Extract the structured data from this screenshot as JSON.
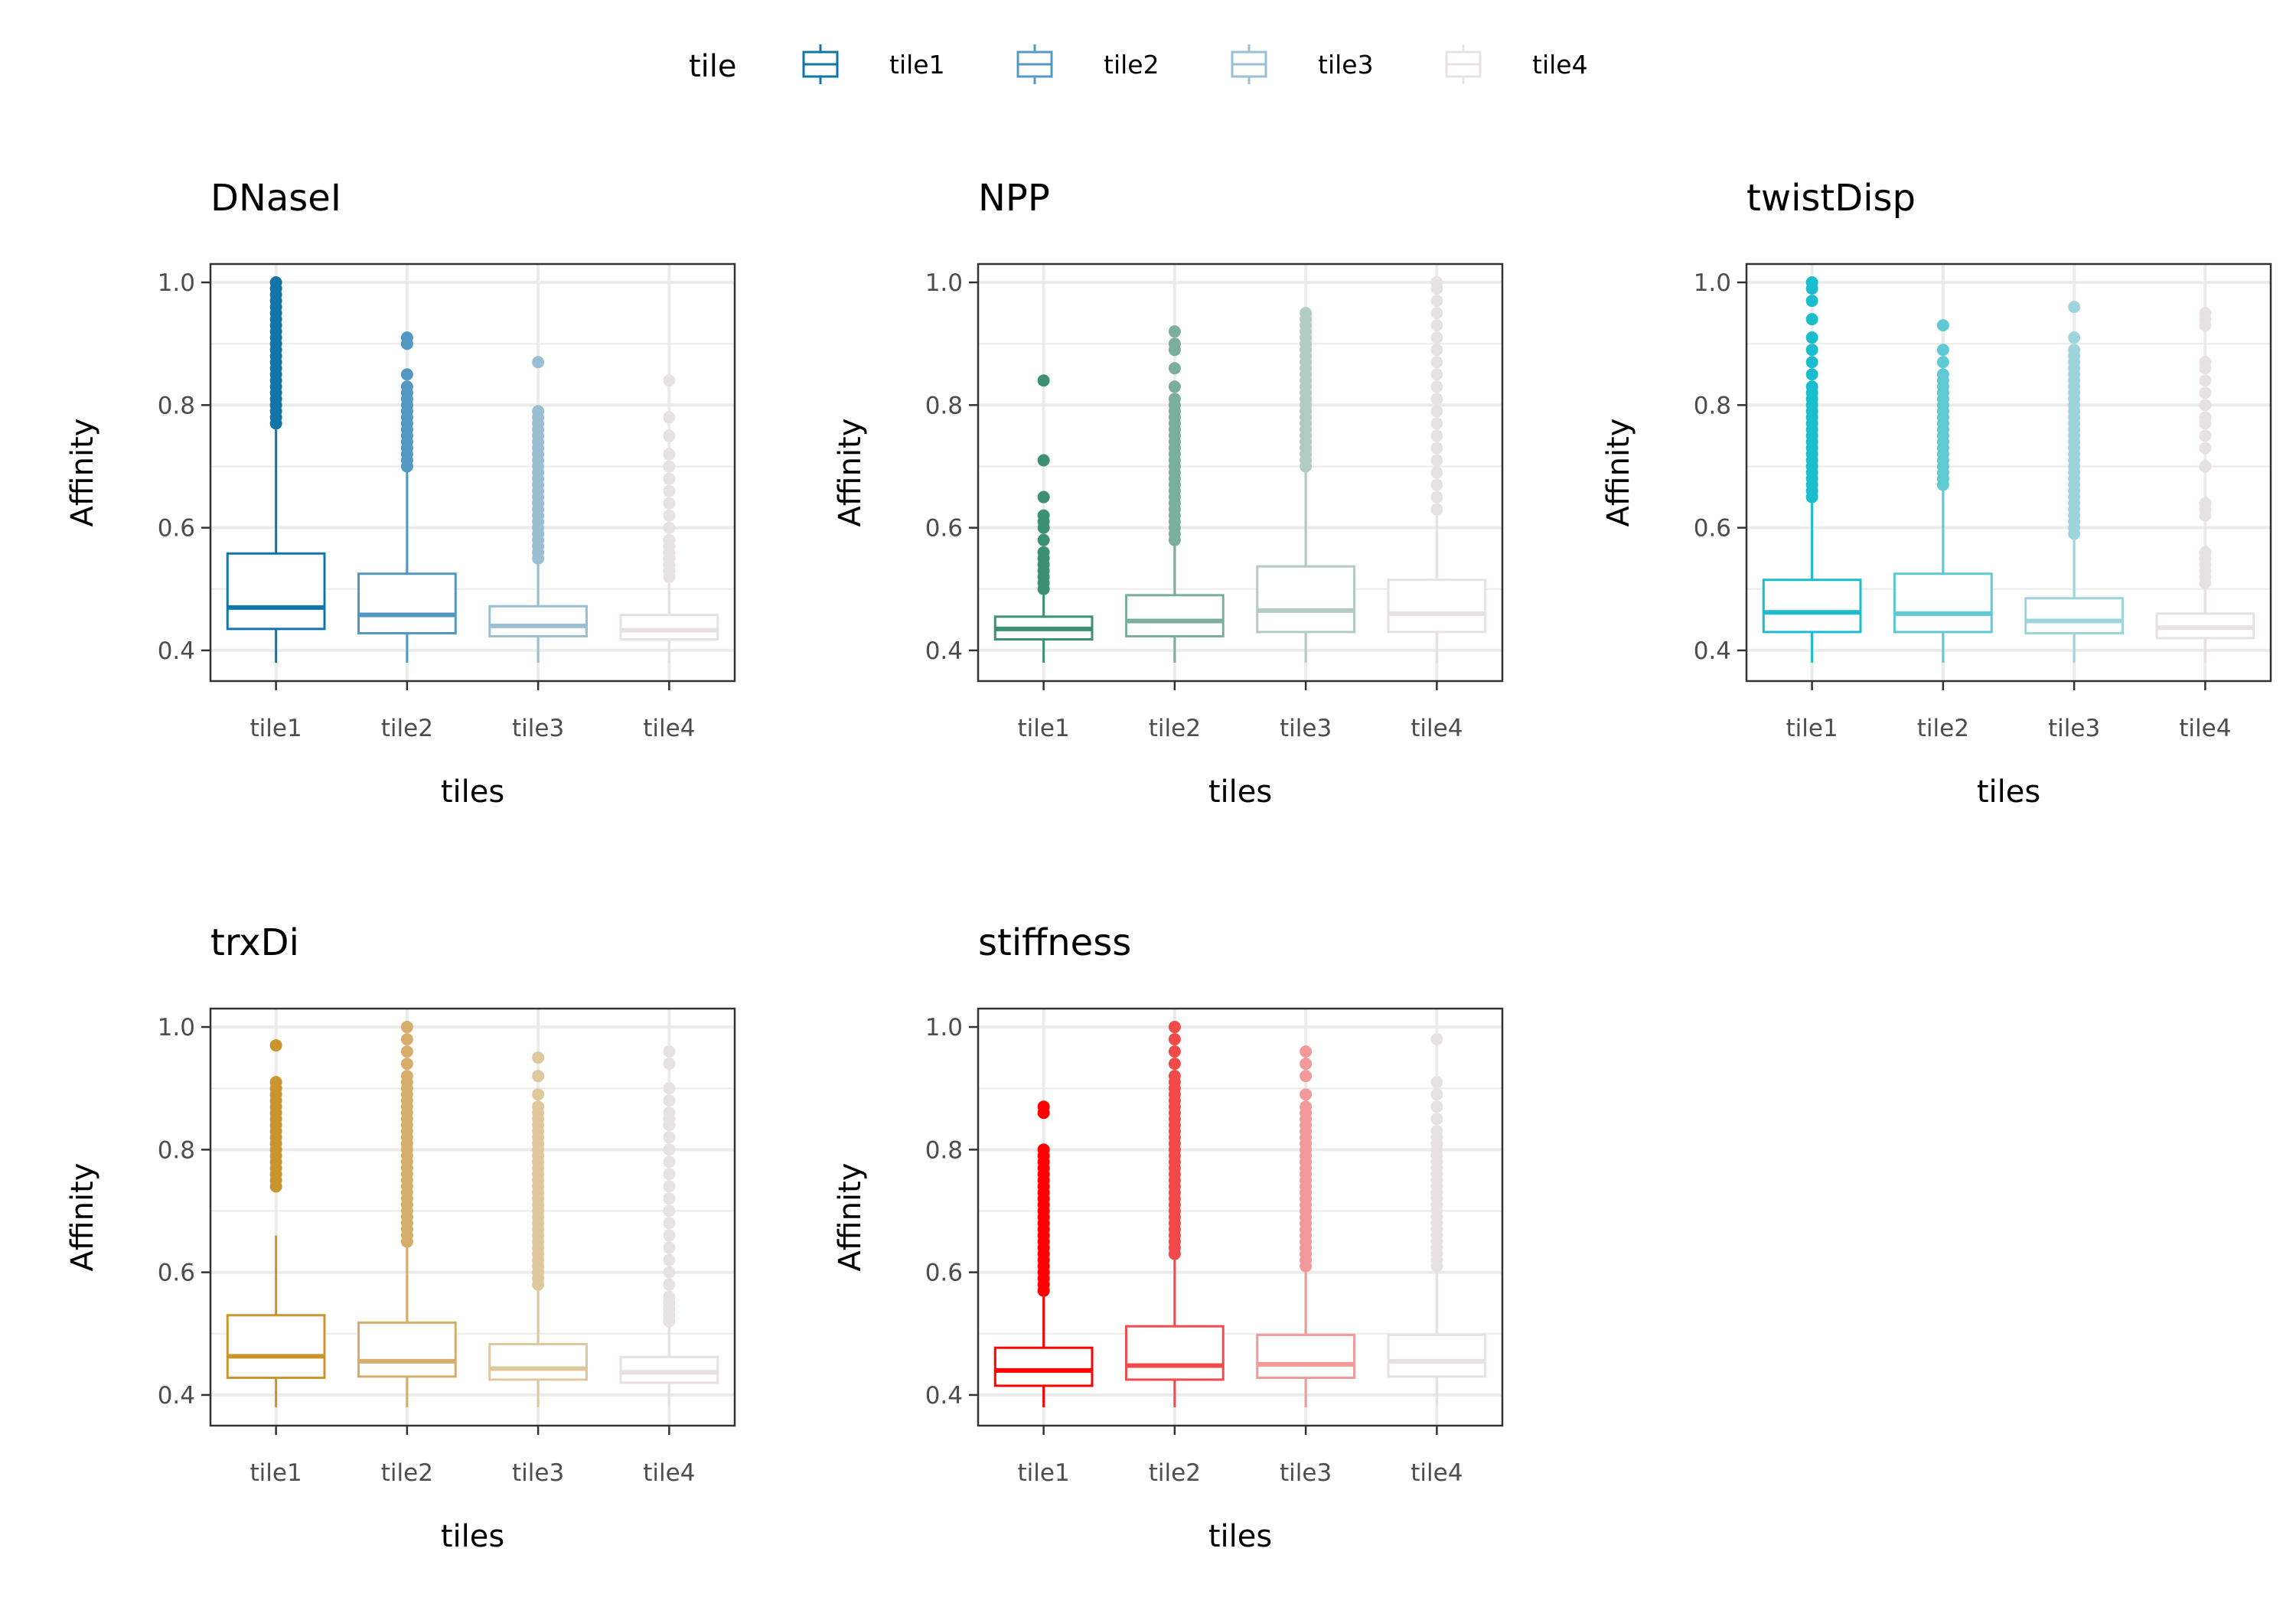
{
  "legend": {
    "title": "tile",
    "items": [
      "tile1",
      "tile2",
      "tile3",
      "tile4"
    ]
  },
  "chart_data": [
    {
      "type": "box",
      "title": "DNaseI",
      "xlabel": "tiles",
      "ylabel": "Affinity",
      "categories": [
        "tile1",
        "tile2",
        "tile3",
        "tile4"
      ],
      "yticks": [
        "0.4",
        "0.6",
        "0.8",
        "1.0"
      ],
      "ylim": [
        0.35,
        1.03
      ],
      "colors": [
        "#1175a8",
        "#5398c2",
        "#98bfd2",
        "#e8e1e3"
      ],
      "boxes": [
        {
          "q1": 0.435,
          "median": 0.47,
          "q3": 0.558,
          "lower_whisker": 0.38,
          "upper_whisker": 0.76,
          "outliers": [
            0.77,
            0.78,
            0.79,
            0.8,
            0.81,
            0.82,
            0.83,
            0.84,
            0.85,
            0.86,
            0.87,
            0.88,
            0.89,
            0.9,
            0.91,
            0.92,
            0.93,
            0.94,
            0.95,
            0.96,
            0.97,
            0.98,
            0.99,
            1.0
          ]
        },
        {
          "q1": 0.428,
          "median": 0.458,
          "q3": 0.525,
          "lower_whisker": 0.38,
          "upper_whisker": 0.69,
          "outliers": [
            0.7,
            0.71,
            0.72,
            0.73,
            0.74,
            0.75,
            0.76,
            0.77,
            0.78,
            0.79,
            0.8,
            0.81,
            0.82,
            0.83,
            0.85,
            0.9,
            0.91
          ]
        },
        {
          "q1": 0.423,
          "median": 0.44,
          "q3": 0.472,
          "lower_whisker": 0.38,
          "upper_whisker": 0.54,
          "outliers": [
            0.55,
            0.56,
            0.57,
            0.58,
            0.59,
            0.6,
            0.61,
            0.62,
            0.63,
            0.64,
            0.65,
            0.66,
            0.67,
            0.68,
            0.69,
            0.7,
            0.71,
            0.72,
            0.73,
            0.74,
            0.75,
            0.76,
            0.77,
            0.78,
            0.79,
            0.87
          ]
        },
        {
          "q1": 0.418,
          "median": 0.433,
          "q3": 0.458,
          "lower_whisker": 0.38,
          "upper_whisker": 0.51,
          "outliers": [
            0.52,
            0.53,
            0.54,
            0.55,
            0.56,
            0.57,
            0.58,
            0.6,
            0.62,
            0.64,
            0.66,
            0.68,
            0.7,
            0.72,
            0.75,
            0.78,
            0.84
          ]
        }
      ]
    },
    {
      "type": "box",
      "title": "NPP",
      "xlabel": "tiles",
      "ylabel": "Affinity",
      "categories": [
        "tile1",
        "tile2",
        "tile3",
        "tile4"
      ],
      "yticks": [
        "0.4",
        "0.6",
        "0.8",
        "1.0"
      ],
      "ylim": [
        0.35,
        1.03
      ],
      "colors": [
        "#3d9073",
        "#7cae9d",
        "#b2cbc3",
        "#e8e1e3"
      ],
      "boxes": [
        {
          "q1": 0.418,
          "median": 0.435,
          "q3": 0.455,
          "lower_whisker": 0.38,
          "upper_whisker": 0.49,
          "outliers": [
            0.5,
            0.51,
            0.52,
            0.53,
            0.54,
            0.55,
            0.56,
            0.58,
            0.6,
            0.61,
            0.62,
            0.65,
            0.71,
            0.84
          ]
        },
        {
          "q1": 0.423,
          "median": 0.448,
          "q3": 0.49,
          "lower_whisker": 0.38,
          "upper_whisker": 0.57,
          "outliers": [
            0.58,
            0.59,
            0.6,
            0.61,
            0.62,
            0.63,
            0.64,
            0.65,
            0.66,
            0.67,
            0.68,
            0.69,
            0.7,
            0.71,
            0.72,
            0.73,
            0.74,
            0.75,
            0.76,
            0.77,
            0.78,
            0.79,
            0.8,
            0.81,
            0.83,
            0.86,
            0.89,
            0.9,
            0.92
          ]
        },
        {
          "q1": 0.43,
          "median": 0.465,
          "q3": 0.537,
          "lower_whisker": 0.38,
          "upper_whisker": 0.69,
          "outliers": [
            0.7,
            0.71,
            0.72,
            0.73,
            0.74,
            0.75,
            0.76,
            0.77,
            0.78,
            0.79,
            0.8,
            0.81,
            0.82,
            0.83,
            0.84,
            0.85,
            0.86,
            0.87,
            0.88,
            0.89,
            0.9,
            0.91,
            0.92,
            0.93,
            0.94,
            0.95
          ]
        },
        {
          "q1": 0.43,
          "median": 0.46,
          "q3": 0.515,
          "lower_whisker": 0.38,
          "upper_whisker": 0.62,
          "outliers": [
            0.63,
            0.65,
            0.67,
            0.69,
            0.71,
            0.73,
            0.75,
            0.77,
            0.79,
            0.81,
            0.83,
            0.85,
            0.87,
            0.89,
            0.91,
            0.93,
            0.95,
            0.97,
            0.99,
            1.0
          ]
        }
      ]
    },
    {
      "type": "box",
      "title": "twistDisp",
      "xlabel": "tiles",
      "ylabel": "Affinity",
      "categories": [
        "tile1",
        "tile2",
        "tile3",
        "tile4"
      ],
      "yticks": [
        "0.4",
        "0.6",
        "0.8",
        "1.0"
      ],
      "ylim": [
        0.35,
        1.03
      ],
      "colors": [
        "#1bbccc",
        "#5fc9d4",
        "#9ed5dc",
        "#e8e1e3"
      ],
      "boxes": [
        {
          "q1": 0.43,
          "median": 0.462,
          "q3": 0.515,
          "lower_whisker": 0.38,
          "upper_whisker": 0.64,
          "outliers": [
            0.65,
            0.66,
            0.67,
            0.68,
            0.69,
            0.7,
            0.71,
            0.72,
            0.73,
            0.74,
            0.75,
            0.76,
            0.77,
            0.78,
            0.79,
            0.8,
            0.81,
            0.82,
            0.83,
            0.85,
            0.87,
            0.89,
            0.91,
            0.94,
            0.97,
            0.99,
            1.0
          ]
        },
        {
          "q1": 0.43,
          "median": 0.46,
          "q3": 0.525,
          "lower_whisker": 0.38,
          "upper_whisker": 0.66,
          "outliers": [
            0.67,
            0.68,
            0.69,
            0.7,
            0.71,
            0.72,
            0.73,
            0.74,
            0.75,
            0.76,
            0.77,
            0.78,
            0.79,
            0.8,
            0.81,
            0.82,
            0.83,
            0.84,
            0.85,
            0.87,
            0.89,
            0.93
          ]
        },
        {
          "q1": 0.428,
          "median": 0.448,
          "q3": 0.485,
          "lower_whisker": 0.38,
          "upper_whisker": 0.58,
          "outliers": [
            0.59,
            0.6,
            0.61,
            0.62,
            0.63,
            0.64,
            0.65,
            0.66,
            0.67,
            0.68,
            0.69,
            0.7,
            0.71,
            0.72,
            0.73,
            0.74,
            0.75,
            0.76,
            0.77,
            0.78,
            0.79,
            0.8,
            0.81,
            0.82,
            0.83,
            0.84,
            0.85,
            0.86,
            0.87,
            0.88,
            0.89,
            0.91,
            0.96
          ]
        },
        {
          "q1": 0.42,
          "median": 0.437,
          "q3": 0.46,
          "lower_whisker": 0.38,
          "upper_whisker": 0.5,
          "outliers": [
            0.51,
            0.52,
            0.53,
            0.54,
            0.55,
            0.56,
            0.62,
            0.63,
            0.64,
            0.7,
            0.73,
            0.75,
            0.77,
            0.78,
            0.8,
            0.82,
            0.84,
            0.86,
            0.87,
            0.93,
            0.94,
            0.95
          ]
        }
      ]
    },
    {
      "type": "box",
      "title": "trxDi",
      "xlabel": "tiles",
      "ylabel": "Affinity",
      "categories": [
        "tile1",
        "tile2",
        "tile3",
        "tile4"
      ],
      "yticks": [
        "0.4",
        "0.6",
        "0.8",
        "1.0"
      ],
      "ylim": [
        0.35,
        1.03
      ],
      "colors": [
        "#c9952c",
        "#d6ae6b",
        "#e0c89d",
        "#e8e1e3"
      ],
      "boxes": [
        {
          "q1": 0.428,
          "median": 0.463,
          "q3": 0.53,
          "lower_whisker": 0.38,
          "upper_whisker": 0.66,
          "outliers": [
            0.74,
            0.75,
            0.76,
            0.77,
            0.78,
            0.79,
            0.8,
            0.81,
            0.82,
            0.83,
            0.84,
            0.85,
            0.86,
            0.87,
            0.88,
            0.89,
            0.9,
            0.91,
            0.97
          ]
        },
        {
          "q1": 0.43,
          "median": 0.455,
          "q3": 0.518,
          "lower_whisker": 0.38,
          "upper_whisker": 0.64,
          "outliers": [
            0.65,
            0.66,
            0.67,
            0.68,
            0.69,
            0.7,
            0.71,
            0.72,
            0.73,
            0.74,
            0.75,
            0.76,
            0.77,
            0.78,
            0.79,
            0.8,
            0.81,
            0.82,
            0.83,
            0.84,
            0.85,
            0.86,
            0.87,
            0.88,
            0.89,
            0.9,
            0.91,
            0.92,
            0.94,
            0.96,
            0.98,
            1.0
          ]
        },
        {
          "q1": 0.425,
          "median": 0.443,
          "q3": 0.483,
          "lower_whisker": 0.38,
          "upper_whisker": 0.57,
          "outliers": [
            0.58,
            0.59,
            0.6,
            0.61,
            0.62,
            0.63,
            0.64,
            0.65,
            0.66,
            0.67,
            0.68,
            0.69,
            0.7,
            0.71,
            0.72,
            0.73,
            0.74,
            0.75,
            0.76,
            0.77,
            0.78,
            0.79,
            0.8,
            0.81,
            0.82,
            0.83,
            0.84,
            0.85,
            0.86,
            0.87,
            0.89,
            0.92,
            0.95
          ]
        },
        {
          "q1": 0.42,
          "median": 0.437,
          "q3": 0.462,
          "lower_whisker": 0.38,
          "upper_whisker": 0.51,
          "outliers": [
            0.52,
            0.53,
            0.54,
            0.55,
            0.56,
            0.58,
            0.6,
            0.62,
            0.64,
            0.66,
            0.68,
            0.7,
            0.72,
            0.74,
            0.76,
            0.78,
            0.8,
            0.82,
            0.84,
            0.85,
            0.86,
            0.88,
            0.9,
            0.94,
            0.96
          ]
        }
      ]
    },
    {
      "type": "box",
      "title": "stiffness",
      "xlabel": "tiles",
      "ylabel": "Affinity",
      "categories": [
        "tile1",
        "tile2",
        "tile3",
        "tile4"
      ],
      "yticks": [
        "0.4",
        "0.6",
        "0.8",
        "1.0"
      ],
      "ylim": [
        0.35,
        1.03
      ],
      "colors": [
        "#ff0000",
        "#f24a4a",
        "#f29a9a",
        "#e8e1e3"
      ],
      "boxes": [
        {
          "q1": 0.415,
          "median": 0.44,
          "q3": 0.477,
          "lower_whisker": 0.38,
          "upper_whisker": 0.56,
          "outliers": [
            0.57,
            0.58,
            0.59,
            0.6,
            0.61,
            0.62,
            0.63,
            0.64,
            0.65,
            0.66,
            0.67,
            0.68,
            0.69,
            0.7,
            0.71,
            0.72,
            0.73,
            0.74,
            0.75,
            0.76,
            0.77,
            0.78,
            0.79,
            0.8,
            0.86,
            0.87
          ]
        },
        {
          "q1": 0.425,
          "median": 0.448,
          "q3": 0.512,
          "lower_whisker": 0.38,
          "upper_whisker": 0.62,
          "outliers": [
            0.63,
            0.64,
            0.65,
            0.66,
            0.67,
            0.68,
            0.69,
            0.7,
            0.71,
            0.72,
            0.73,
            0.74,
            0.75,
            0.76,
            0.77,
            0.78,
            0.79,
            0.8,
            0.81,
            0.82,
            0.83,
            0.84,
            0.85,
            0.86,
            0.87,
            0.88,
            0.89,
            0.9,
            0.91,
            0.92,
            0.94,
            0.96,
            0.98,
            1.0
          ]
        },
        {
          "q1": 0.428,
          "median": 0.45,
          "q3": 0.498,
          "lower_whisker": 0.38,
          "upper_whisker": 0.6,
          "outliers": [
            0.61,
            0.62,
            0.63,
            0.64,
            0.65,
            0.66,
            0.67,
            0.68,
            0.69,
            0.7,
            0.71,
            0.72,
            0.73,
            0.74,
            0.75,
            0.76,
            0.77,
            0.78,
            0.79,
            0.8,
            0.81,
            0.82,
            0.83,
            0.84,
            0.85,
            0.86,
            0.87,
            0.89,
            0.92,
            0.94,
            0.96
          ]
        },
        {
          "q1": 0.43,
          "median": 0.455,
          "q3": 0.498,
          "lower_whisker": 0.38,
          "upper_whisker": 0.6,
          "outliers": [
            0.61,
            0.62,
            0.63,
            0.64,
            0.65,
            0.66,
            0.67,
            0.68,
            0.69,
            0.7,
            0.71,
            0.72,
            0.73,
            0.74,
            0.75,
            0.76,
            0.77,
            0.78,
            0.79,
            0.8,
            0.81,
            0.82,
            0.83,
            0.85,
            0.87,
            0.89,
            0.91,
            0.98
          ]
        }
      ]
    }
  ]
}
